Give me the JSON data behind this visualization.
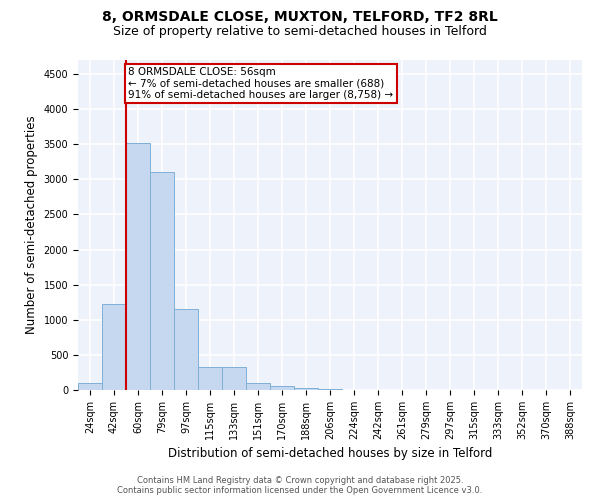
{
  "title_line1": "8, ORMSDALE CLOSE, MUXTON, TELFORD, TF2 8RL",
  "title_line2": "Size of property relative to semi-detached houses in Telford",
  "xlabel": "Distribution of semi-detached houses by size in Telford",
  "ylabel": "Number of semi-detached properties",
  "categories": [
    "24sqm",
    "42sqm",
    "60sqm",
    "79sqm",
    "97sqm",
    "115sqm",
    "133sqm",
    "151sqm",
    "170sqm",
    "188sqm",
    "206sqm",
    "224sqm",
    "242sqm",
    "261sqm",
    "279sqm",
    "297sqm",
    "315sqm",
    "333sqm",
    "352sqm",
    "370sqm",
    "388sqm"
  ],
  "values": [
    100,
    1230,
    3520,
    3100,
    1160,
    330,
    330,
    100,
    60,
    35,
    10,
    5,
    3,
    2,
    1,
    1,
    0,
    0,
    0,
    0,
    0
  ],
  "bar_color": "#c5d8f0",
  "bar_edgecolor": "#7fb0d8",
  "vline_color": "#cc0000",
  "annotation_text": "8 ORMSDALE CLOSE: 56sqm\n← 7% of semi-detached houses are smaller (688)\n91% of semi-detached houses are larger (8,758) →",
  "annotation_box_color": "#cc0000",
  "annotation_fill": "white",
  "ylim": [
    0,
    4700
  ],
  "yticks": [
    0,
    500,
    1000,
    1500,
    2000,
    2500,
    3000,
    3500,
    4000,
    4500
  ],
  "background_color": "#eef2fa",
  "grid_color": "white",
  "footer_line1": "Contains HM Land Registry data © Crown copyright and database right 2025.",
  "footer_line2": "Contains public sector information licensed under the Open Government Licence v3.0.",
  "title_fontsize": 10,
  "subtitle_fontsize": 9,
  "axis_label_fontsize": 8.5,
  "tick_fontsize": 7,
  "annotation_fontsize": 7.5,
  "footer_fontsize": 6
}
